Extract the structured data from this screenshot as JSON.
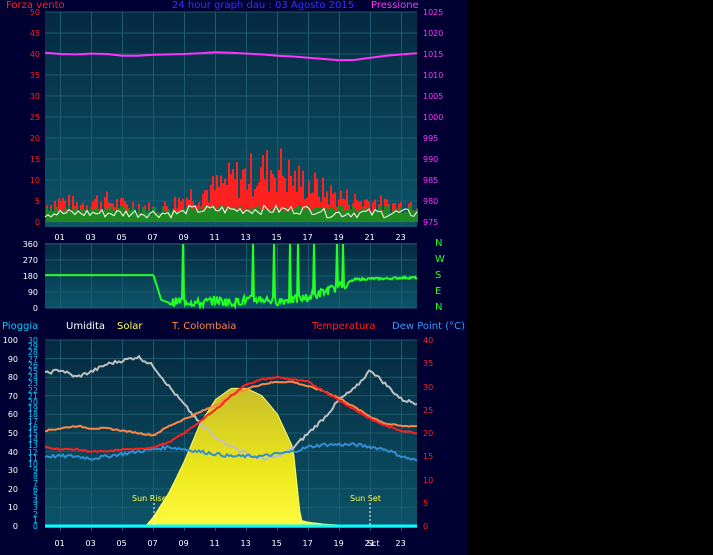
{
  "colors": {
    "background": "#000033",
    "plot_bg_top": "#08334a",
    "plot_bg_bottom": "#0a4f63",
    "grid": "#1f5b70",
    "frame": "#0a0a55",
    "wind": "#ff3030",
    "gust_green": "#1f8a1f",
    "wind_white": "#ffffff",
    "pressure": "#ff33ff",
    "direction": "#22ff22",
    "humidity": "#c0c0c0",
    "solar_fill": "#e8e020",
    "solar_line": "#ffff44",
    "colombaia": "#ff8844",
    "temperature": "#ff2020",
    "dewpoint": "#2f8fd0",
    "rain": "#00ffff",
    "label_red": "#ff2020",
    "label_magenta": "#ff33ff",
    "label_blue": "#3333ff",
    "label_cyan": "#00ccff",
    "label_yellow": "#ffff44",
    "label_orange": "#ff8844",
    "label_white": "#ffffff",
    "label_green": "#22ff22"
  },
  "top_chart": {
    "title": "24 hour graph dau : 03 Agosto 2015",
    "left_label": "Forza vento",
    "right_label": "Pressione",
    "left_ticks": [
      "0",
      "5",
      "10",
      "15",
      "20",
      "25",
      "30",
      "35",
      "40",
      "45",
      "50"
    ],
    "right_ticks": [
      "975",
      "980",
      "985",
      "990",
      "995",
      "1000",
      "1005",
      "1010",
      "1015",
      "1020",
      "1025"
    ],
    "x_ticks": [
      "01",
      "03",
      "05",
      "07",
      "09",
      "11",
      "13",
      "15",
      "17",
      "19",
      "21",
      "23"
    ]
  },
  "dir_chart": {
    "left_ticks": [
      "0",
      "90",
      "180",
      "270",
      "360"
    ],
    "compass": [
      "N",
      "W",
      "S",
      "E",
      "N"
    ]
  },
  "bottom_chart": {
    "legend": {
      "rain": "Pioggia",
      "humidity": "Umidita",
      "solar": "Solar",
      "colombaia": "T. Colombaia",
      "temperature": "Temperatura",
      "dewpoint": "Dew Point (°C)"
    },
    "ticks_a": [
      "0",
      "10",
      "20",
      "30",
      "40",
      "50",
      "60",
      "70",
      "80",
      "90",
      "100"
    ],
    "ticks_b": [
      "0",
      "1",
      "2",
      "3",
      "4",
      "5",
      "6",
      "7",
      "8",
      "9",
      "10",
      "11",
      "12",
      "13",
      "14",
      "15",
      "16",
      "17",
      "18",
      "19",
      "20",
      "21",
      "22",
      "23",
      "24",
      "25",
      "26",
      "27",
      "28",
      "29",
      "30"
    ],
    "ticks_right": [
      "0",
      "5",
      "10",
      "15",
      "20",
      "25",
      "30",
      "35",
      "40"
    ],
    "x_ticks": [
      "01",
      "03",
      "05",
      "07",
      "09",
      "11",
      "13",
      "15",
      "17",
      "19",
      "21",
      "23"
    ],
    "sun_rise": "Sun Rise",
    "sun_set": "Sun Set",
    "sun_set_axis": "Sct"
  },
  "chart_data": [
    {
      "type": "line",
      "title": "24 hour graph dau : 03 Agosto 2015",
      "x_unit_label": "hour",
      "x_range": [
        0,
        24
      ],
      "ylim_left": [
        0,
        50
      ],
      "ylim_right": [
        975,
        1025
      ],
      "series": [
        {
          "name": "Pressione",
          "axis": "right",
          "x": [
            0,
            1,
            2,
            3,
            4,
            5,
            6,
            7,
            8,
            9,
            10,
            11,
            12,
            13,
            14,
            15,
            16,
            17,
            18,
            19,
            20,
            21,
            22,
            23,
            24
          ],
          "values": [
            1015.3,
            1015,
            1014.9,
            1015.1,
            1015,
            1014.6,
            1014.6,
            1014.8,
            1014.9,
            1015,
            1015.2,
            1015.4,
            1015.3,
            1015.1,
            1014.9,
            1014.6,
            1014.4,
            1014.1,
            1013.8,
            1013.5,
            1013.6,
            1014.1,
            1014.6,
            1014.9,
            1015.2
          ]
        },
        {
          "name": "Forza vento",
          "axis": "left",
          "x": [
            0,
            1,
            2,
            3,
            4,
            5,
            6,
            7,
            8,
            9,
            10,
            11,
            12,
            13,
            14,
            15,
            16,
            17,
            18,
            19,
            20,
            21,
            22,
            23,
            24
          ],
          "values": [
            4,
            5,
            4,
            5,
            5,
            4,
            4,
            3,
            4,
            6,
            7,
            8,
            10,
            11,
            12,
            13,
            10,
            9,
            7,
            6,
            5,
            5,
            4,
            4,
            5
          ]
        }
      ]
    },
    {
      "type": "line",
      "x_range": [
        0,
        24
      ],
      "ylim": [
        0,
        360
      ],
      "series": [
        {
          "name": "direction",
          "x": [
            0,
            1,
            2,
            3,
            4,
            5,
            6,
            7,
            7.5,
            8,
            9,
            10,
            11,
            12,
            13,
            14,
            15,
            16,
            17,
            18,
            19,
            19.5,
            20,
            21,
            22,
            23,
            24
          ],
          "values": [
            185,
            185,
            185,
            185,
            185,
            185,
            185,
            185,
            45,
            30,
            40,
            25,
            45,
            30,
            45,
            50,
            40,
            45,
            60,
            90,
            120,
            140,
            160,
            165,
            165,
            170,
            170
          ]
        }
      ]
    },
    {
      "type": "line",
      "x_range": [
        0,
        24
      ],
      "ylim_left": [
        0,
        100
      ],
      "ylim_right": [
        0,
        40
      ],
      "series": [
        {
          "name": "Umidita",
          "axis": "left",
          "x": [
            0,
            1,
            2,
            3,
            4,
            5,
            6,
            7,
            8,
            9,
            10,
            11,
            12,
            13,
            14,
            15,
            16,
            17,
            18,
            19,
            20,
            21,
            22,
            23,
            24
          ],
          "values": [
            82,
            84,
            80,
            83,
            87,
            89,
            91,
            86,
            75,
            65,
            55,
            48,
            43,
            39,
            36,
            37,
            42,
            50,
            58,
            68,
            74,
            84,
            76,
            68,
            66
          ]
        },
        {
          "name": "Solar",
          "axis": "left",
          "x": [
            0,
            5,
            6.5,
            7,
            8,
            9,
            10,
            11,
            12,
            13,
            14,
            15,
            16,
            16.5,
            17,
            18,
            19,
            20,
            21,
            24
          ],
          "values": [
            0,
            0,
            0,
            5,
            18,
            35,
            55,
            68,
            74,
            74,
            70,
            60,
            42,
            3,
            2,
            1,
            0.5,
            0,
            0,
            0
          ]
        },
        {
          "name": "T. Colombaia",
          "axis": "right",
          "x": [
            0,
            1,
            2,
            3,
            4,
            5,
            6,
            7,
            8,
            9,
            10,
            11,
            12,
            13,
            14,
            15,
            16,
            17,
            18,
            19,
            20,
            21,
            22,
            23,
            24
          ],
          "values": [
            20.5,
            21,
            21.5,
            21,
            21,
            20.5,
            20,
            19.5,
            21.5,
            23,
            24.5,
            26,
            28,
            29.5,
            30.5,
            31,
            31,
            30,
            29,
            27.5,
            25.5,
            23.5,
            22,
            21.5,
            21.5
          ]
        },
        {
          "name": "Temperatura",
          "axis": "right",
          "x": [
            0,
            1,
            2,
            3,
            4,
            5,
            6,
            7,
            8,
            9,
            10,
            11,
            12,
            13,
            14,
            15,
            16,
            17,
            18,
            19,
            20,
            21,
            22,
            23,
            24
          ],
          "values": [
            17,
            16.5,
            16.5,
            16,
            16,
            16.5,
            16.5,
            17,
            18,
            20,
            22.5,
            25,
            28,
            30.5,
            31.5,
            32,
            31.5,
            31,
            29,
            27,
            25,
            23,
            21.5,
            20.5,
            20
          ]
        },
        {
          "name": "Dew Point (°C)",
          "axis": "right",
          "x": [
            0,
            1,
            2,
            3,
            4,
            5,
            6,
            7,
            8,
            9,
            10,
            11,
            12,
            13,
            14,
            15,
            16,
            17,
            18,
            19,
            20,
            21,
            22,
            23,
            24
          ],
          "values": [
            15,
            15,
            15,
            14.5,
            15,
            15.5,
            16,
            16.5,
            17,
            16.5,
            16,
            15.5,
            15,
            15,
            15,
            15.5,
            16,
            17,
            17.5,
            17.5,
            17.5,
            17,
            16.5,
            15,
            14
          ]
        },
        {
          "name": "Pioggia",
          "axis": "left",
          "x": [
            0,
            24
          ],
          "values": [
            0,
            0
          ]
        }
      ]
    }
  ]
}
